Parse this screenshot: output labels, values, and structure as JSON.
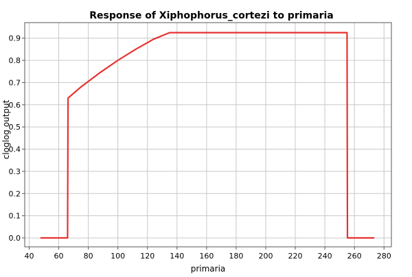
{
  "chart_data": {
    "type": "line",
    "title": "Response of Xiphophorus_cortezi to primaria",
    "xlabel": "primaria",
    "ylabel": "cloglog output",
    "xlim": [
      37,
      285
    ],
    "ylim": [
      -0.04,
      0.97
    ],
    "xticks": [
      40,
      60,
      80,
      100,
      120,
      140,
      160,
      180,
      200,
      220,
      240,
      260,
      280
    ],
    "yticks": [
      0.0,
      0.1,
      0.2,
      0.3,
      0.4,
      0.5,
      0.6,
      0.7,
      0.8,
      0.9
    ],
    "ytick_labels": [
      "0.0",
      "0.1",
      "0.2",
      "0.3",
      "0.4",
      "0.5",
      "0.6",
      "0.7",
      "0.8",
      "0.9"
    ],
    "grid": true,
    "series": [
      {
        "color": "#e8302e",
        "x": [
          48,
          66,
          66.3,
          75,
          88,
          100,
          112,
          124,
          135,
          255,
          255.3,
          273
        ],
        "y": [
          0.0,
          0.0,
          0.63,
          0.68,
          0.745,
          0.8,
          0.85,
          0.895,
          0.925,
          0.925,
          0.0,
          0.0
        ]
      }
    ]
  }
}
